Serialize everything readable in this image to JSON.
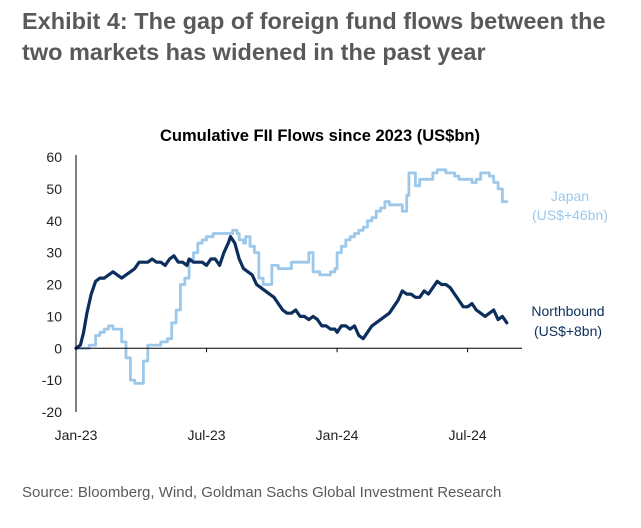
{
  "exhibit_title": "Exhibit 4: The gap of foreign fund flows between the two markets has widened in the past year",
  "source": "Source: Bloomberg, Wind, Goldman Sachs Global Investment Research",
  "colors": {
    "japan": "#9DC8EA",
    "northbound": "#0C2E5C",
    "axis": "#000000",
    "text": "#595959"
  },
  "chart_data": {
    "type": "line",
    "title": "Cumulative FII Flows since 2023 (US$bn)",
    "xlabel": "",
    "ylabel": "",
    "xlim": [
      0,
      20.5
    ],
    "ylim": [
      -20,
      60
    ],
    "yticks": [
      "-20",
      "-10",
      "0",
      "10",
      "20",
      "30",
      "40",
      "50",
      "60"
    ],
    "x_ticks": [
      {
        "x": 0,
        "label": "Jan-23"
      },
      {
        "x": 6,
        "label": "Jul-23"
      },
      {
        "x": 12,
        "label": "Jan-24"
      },
      {
        "x": 18,
        "label": "Jul-24"
      }
    ],
    "series": [
      {
        "name": "Japan",
        "label_line1": "Japan",
        "label_line2": "(US$+46bn)",
        "end_value": 46,
        "style": "step",
        "points": [
          [
            0,
            0
          ],
          [
            0.3,
            0
          ],
          [
            0.6,
            1
          ],
          [
            0.9,
            4
          ],
          [
            1.1,
            5
          ],
          [
            1.3,
            6
          ],
          [
            1.5,
            7
          ],
          [
            1.7,
            6
          ],
          [
            1.9,
            6
          ],
          [
            2.1,
            2
          ],
          [
            2.3,
            -3
          ],
          [
            2.5,
            -10
          ],
          [
            2.7,
            -11
          ],
          [
            3.0,
            -11
          ],
          [
            3.1,
            -4
          ],
          [
            3.3,
            1
          ],
          [
            3.6,
            1
          ],
          [
            3.9,
            2
          ],
          [
            4.2,
            3
          ],
          [
            4.4,
            8
          ],
          [
            4.6,
            12
          ],
          [
            4.8,
            20
          ],
          [
            5.0,
            22
          ],
          [
            5.2,
            28
          ],
          [
            5.4,
            30
          ],
          [
            5.6,
            33
          ],
          [
            5.8,
            34
          ],
          [
            6.0,
            35
          ],
          [
            6.3,
            36
          ],
          [
            6.6,
            36
          ],
          [
            6.9,
            36
          ],
          [
            7.2,
            37
          ],
          [
            7.4,
            36
          ],
          [
            7.5,
            34
          ],
          [
            7.7,
            33
          ],
          [
            7.8,
            35
          ],
          [
            8.0,
            32
          ],
          [
            8.2,
            30
          ],
          [
            8.4,
            22
          ],
          [
            8.6,
            20
          ],
          [
            8.8,
            20
          ],
          [
            9.0,
            26
          ],
          [
            9.3,
            25
          ],
          [
            9.6,
            25
          ],
          [
            9.9,
            27
          ],
          [
            10.2,
            27
          ],
          [
            10.5,
            27
          ],
          [
            10.7,
            30
          ],
          [
            10.9,
            24
          ],
          [
            11.2,
            23
          ],
          [
            11.5,
            23
          ],
          [
            11.7,
            24
          ],
          [
            11.9,
            25
          ],
          [
            12.0,
            30
          ],
          [
            12.2,
            32
          ],
          [
            12.4,
            34
          ],
          [
            12.6,
            35
          ],
          [
            12.8,
            36
          ],
          [
            13.0,
            37
          ],
          [
            13.2,
            38
          ],
          [
            13.4,
            40
          ],
          [
            13.6,
            41
          ],
          [
            13.8,
            43
          ],
          [
            14.0,
            44
          ],
          [
            14.2,
            46
          ],
          [
            14.4,
            45
          ],
          [
            14.6,
            45
          ],
          [
            14.8,
            45
          ],
          [
            15.0,
            43
          ],
          [
            15.2,
            48
          ],
          [
            15.3,
            55
          ],
          [
            15.5,
            55
          ],
          [
            15.6,
            51
          ],
          [
            15.8,
            53
          ],
          [
            16.0,
            53
          ],
          [
            16.2,
            53
          ],
          [
            16.4,
            55
          ],
          [
            16.6,
            56
          ],
          [
            16.8,
            56
          ],
          [
            17.0,
            55
          ],
          [
            17.2,
            55
          ],
          [
            17.4,
            54
          ],
          [
            17.6,
            53
          ],
          [
            17.8,
            53
          ],
          [
            18.0,
            53
          ],
          [
            18.2,
            52
          ],
          [
            18.4,
            53
          ],
          [
            18.6,
            55
          ],
          [
            18.8,
            55
          ],
          [
            19.0,
            54
          ],
          [
            19.2,
            52
          ],
          [
            19.4,
            50
          ],
          [
            19.6,
            46
          ],
          [
            19.8,
            46
          ]
        ]
      },
      {
        "name": "Northbound",
        "label_line1": "Northbound",
        "label_line2": "(US$+8bn)",
        "end_value": 8,
        "style": "smooth",
        "points": [
          [
            0,
            0
          ],
          [
            0.2,
            1
          ],
          [
            0.35,
            5
          ],
          [
            0.5,
            11
          ],
          [
            0.7,
            17
          ],
          [
            0.9,
            21
          ],
          [
            1.1,
            22
          ],
          [
            1.3,
            22
          ],
          [
            1.5,
            23
          ],
          [
            1.7,
            24
          ],
          [
            1.9,
            23
          ],
          [
            2.1,
            22
          ],
          [
            2.3,
            23
          ],
          [
            2.5,
            24
          ],
          [
            2.7,
            25
          ],
          [
            2.9,
            27
          ],
          [
            3.1,
            27
          ],
          [
            3.3,
            27
          ],
          [
            3.5,
            28
          ],
          [
            3.7,
            27
          ],
          [
            3.9,
            27
          ],
          [
            4.1,
            26
          ],
          [
            4.3,
            28
          ],
          [
            4.5,
            29
          ],
          [
            4.7,
            27
          ],
          [
            4.9,
            27
          ],
          [
            5.1,
            26
          ],
          [
            5.2,
            28
          ],
          [
            5.4,
            27
          ],
          [
            5.6,
            27
          ],
          [
            5.8,
            27
          ],
          [
            6.0,
            26
          ],
          [
            6.2,
            28
          ],
          [
            6.4,
            28
          ],
          [
            6.6,
            26
          ],
          [
            6.8,
            30
          ],
          [
            7.0,
            33
          ],
          [
            7.1,
            35
          ],
          [
            7.3,
            33
          ],
          [
            7.5,
            28
          ],
          [
            7.7,
            25
          ],
          [
            7.9,
            24
          ],
          [
            8.1,
            23
          ],
          [
            8.3,
            20
          ],
          [
            8.5,
            19
          ],
          [
            8.7,
            18
          ],
          [
            8.9,
            17
          ],
          [
            9.1,
            16
          ],
          [
            9.3,
            14
          ],
          [
            9.5,
            12
          ],
          [
            9.7,
            11
          ],
          [
            9.9,
            11
          ],
          [
            10.1,
            12
          ],
          [
            10.3,
            10
          ],
          [
            10.5,
            10
          ],
          [
            10.7,
            9
          ],
          [
            10.9,
            10
          ],
          [
            11.1,
            9
          ],
          [
            11.3,
            7
          ],
          [
            11.5,
            7
          ],
          [
            11.7,
            6
          ],
          [
            11.9,
            6
          ],
          [
            12.0,
            5
          ],
          [
            12.2,
            7
          ],
          [
            12.4,
            7
          ],
          [
            12.6,
            6
          ],
          [
            12.8,
            7
          ],
          [
            13.0,
            4
          ],
          [
            13.2,
            3
          ],
          [
            13.4,
            5
          ],
          [
            13.6,
            7
          ],
          [
            13.8,
            8
          ],
          [
            14.0,
            9
          ],
          [
            14.2,
            10
          ],
          [
            14.4,
            11
          ],
          [
            14.6,
            13
          ],
          [
            14.8,
            15
          ],
          [
            15.0,
            18
          ],
          [
            15.2,
            17
          ],
          [
            15.4,
            17
          ],
          [
            15.6,
            16
          ],
          [
            15.8,
            16
          ],
          [
            16.0,
            18
          ],
          [
            16.2,
            17
          ],
          [
            16.4,
            19
          ],
          [
            16.6,
            21
          ],
          [
            16.8,
            20
          ],
          [
            17.0,
            20
          ],
          [
            17.2,
            19
          ],
          [
            17.4,
            17
          ],
          [
            17.6,
            15
          ],
          [
            17.8,
            13
          ],
          [
            18.0,
            13
          ],
          [
            18.2,
            14
          ],
          [
            18.4,
            12
          ],
          [
            18.6,
            11
          ],
          [
            18.8,
            10
          ],
          [
            19.0,
            11
          ],
          [
            19.2,
            12
          ],
          [
            19.4,
            9
          ],
          [
            19.6,
            10
          ],
          [
            19.8,
            8
          ]
        ]
      }
    ]
  }
}
